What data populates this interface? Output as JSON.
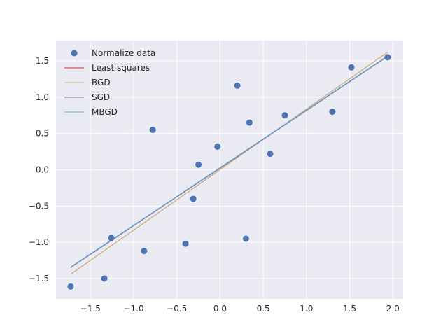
{
  "chart_data": {
    "type": "scatter",
    "title": "",
    "xlabel": "",
    "ylabel": "",
    "xlim": [
      -1.9,
      2.12
    ],
    "ylim": [
      -1.78,
      1.78
    ],
    "xticks": [
      -1.5,
      -1.0,
      -0.5,
      0.0,
      0.5,
      1.0,
      1.5,
      2.0
    ],
    "yticks": [
      -1.5,
      -1.0,
      -0.5,
      0.0,
      0.5,
      1.0,
      1.5
    ],
    "xtick_labels": [
      "−1.5",
      "−1.0",
      "−0.5",
      "0.0",
      "0.5",
      "1.0",
      "1.5",
      "2.0"
    ],
    "ytick_labels": [
      "−1.5",
      "−1.0",
      "−0.5",
      "0.0",
      "0.5",
      "1.0",
      "1.5"
    ],
    "grid": true,
    "legend_position": "top-left",
    "series": [
      {
        "name": "Normalize data",
        "kind": "scatter",
        "color": "#4c72b0",
        "points": [
          [
            -1.73,
            -1.61
          ],
          [
            -1.34,
            -1.5
          ],
          [
            -1.26,
            -0.94
          ],
          [
            -0.88,
            -1.12
          ],
          [
            -0.78,
            0.55
          ],
          [
            -0.4,
            -1.02
          ],
          [
            -0.31,
            -0.4
          ],
          [
            -0.25,
            0.07
          ],
          [
            -0.03,
            0.32
          ],
          [
            0.2,
            1.16
          ],
          [
            0.3,
            -0.95
          ],
          [
            0.34,
            0.65
          ],
          [
            0.58,
            0.22
          ],
          [
            0.75,
            0.75
          ],
          [
            1.3,
            0.8
          ],
          [
            1.52,
            1.41
          ],
          [
            1.94,
            1.55
          ]
        ]
      },
      {
        "name": "Least squares",
        "kind": "line",
        "color": "#d62728",
        "x": [
          -1.73,
          1.94
        ],
        "y": [
          -1.44,
          1.62
        ]
      },
      {
        "name": "BGD",
        "kind": "line",
        "color": "#ccb974",
        "x": [
          -1.73,
          1.94
        ],
        "y": [
          -1.44,
          1.62
        ]
      },
      {
        "name": "SGD",
        "kind": "line",
        "color": "#8172b2",
        "x": [
          -1.73,
          1.94
        ],
        "y": [
          -1.35,
          1.56
        ]
      },
      {
        "name": "MBGD",
        "kind": "line",
        "color": "#64b5cd",
        "x": [
          -1.73,
          1.94
        ],
        "y": [
          -1.34,
          1.57
        ]
      }
    ],
    "colors": {
      "plot_background": "#eaeaf2",
      "grid": "#ffffff"
    }
  }
}
